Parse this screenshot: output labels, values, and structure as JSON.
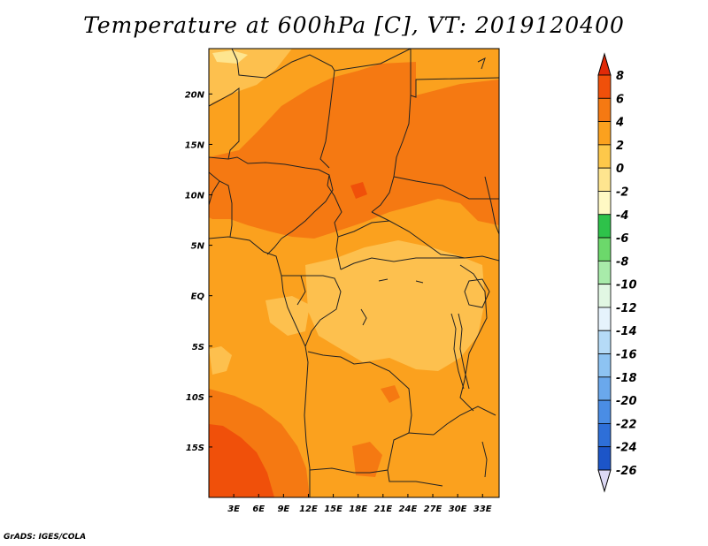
{
  "title": "Temperature at 600hPa [C], VT: 2019120400",
  "credit": "GrADS: IGES/COLA",
  "map": {
    "region": "Central Africa",
    "lon_range": [
      0,
      35
    ],
    "lat_range": [
      -20,
      24.5
    ],
    "lon_ticks": [
      "3E",
      "6E",
      "9E",
      "12E",
      "15E",
      "18E",
      "21E",
      "24E",
      "27E",
      "30E",
      "33E"
    ],
    "lon_tick_values": [
      3,
      6,
      9,
      12,
      15,
      18,
      21,
      24,
      27,
      30,
      33
    ],
    "lat_ticks": [
      "20N",
      "15N",
      "10N",
      "5N",
      "EQ",
      "5S",
      "10S",
      "15S"
    ],
    "lat_tick_values": [
      20,
      15,
      10,
      5,
      0,
      -5,
      -10,
      -15
    ]
  },
  "colorbar": {
    "levels": [
      "8",
      "6",
      "4",
      "2",
      "0",
      "-2",
      "-4",
      "-6",
      "-8",
      "-10",
      "-12",
      "-14",
      "-16",
      "-18",
      "-20",
      "-22",
      "-24",
      "-26"
    ],
    "colors": [
      "#e02a08",
      "#f0500a",
      "#f57912",
      "#fba11e",
      "#fdc84a",
      "#fee58f",
      "#fff9c4",
      "#2ec24a",
      "#6cd86b",
      "#a8ebaa",
      "#e1f7e3",
      "#e6f3fc",
      "#b5dbf7",
      "#8dc3f2",
      "#6aa8ec",
      "#4a8de5",
      "#2e6fd8",
      "#1c55c8",
      "#113fae",
      "#0b1f7c",
      "#dcd8f4"
    ]
  },
  "field_colors": {
    "c_lt2": "#fdc04e",
    "c_2to4": "#fba11e",
    "c_4to6": "#f57912",
    "c_6to8": "#f0500a",
    "c_gt8": "#e02a08",
    "c_yellow": "#fee58f"
  }
}
